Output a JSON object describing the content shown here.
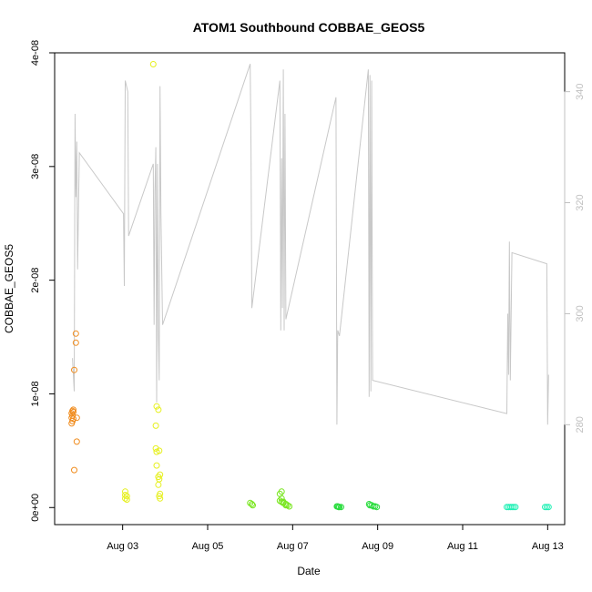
{
  "chart_data": {
    "type": "scatter",
    "title": "ATOM1 Southbound COBBAE_GEOS5",
    "xlabel": "Date",
    "ylabel": "COBBAE_GEOS5",
    "xlim": [
      "2016-08-01T09:36",
      "2016-08-13T09:36"
    ],
    "x_ticks": [
      {
        "date": "2016-08-03",
        "label": "Aug 03"
      },
      {
        "date": "2016-08-05",
        "label": "Aug 05"
      },
      {
        "date": "2016-08-07",
        "label": "Aug 07"
      },
      {
        "date": "2016-08-09",
        "label": "Aug 09"
      },
      {
        "date": "2016-08-11",
        "label": "Aug 11"
      },
      {
        "date": "2016-08-13",
        "label": "Aug 13"
      }
    ],
    "ylim": [
      -1.5e-09,
      4e-08
    ],
    "y_ticks": [
      {
        "value": 0,
        "label": "0e+00"
      },
      {
        "value": 1e-08,
        "label": "1e-08"
      },
      {
        "value": 2e-08,
        "label": "2e-08"
      },
      {
        "value": 3e-08,
        "label": "3e-08"
      },
      {
        "value": 4e-08,
        "label": "4e-08"
      }
    ],
    "y2lim": [
      262,
      347
    ],
    "y2_ticks": [
      {
        "value": 280,
        "label": "280"
      },
      {
        "value": 300,
        "label": "300"
      },
      {
        "value": 320,
        "label": "320"
      },
      {
        "value": 340,
        "label": "340"
      }
    ],
    "grid": false,
    "colors": {
      "secondary_line": "#c8c8c8",
      "right_axis": "#c0c0c0"
    },
    "series": [
      {
        "points": [
          [
            "2016-08-01T19:12",
            7.4e-09
          ],
          [
            "2016-08-01T19:12",
            7.9e-09
          ],
          [
            "2016-08-01T19:12",
            8.3e-09
          ],
          [
            "2016-08-01T19:40",
            7.6e-09
          ],
          [
            "2016-08-01T19:40",
            8.1e-09
          ],
          [
            "2016-08-01T19:40",
            8.5e-09
          ],
          [
            "2016-08-01T20:10",
            7.8e-09
          ],
          [
            "2016-08-01T20:10",
            8.4e-09
          ],
          [
            "2016-08-01T20:10",
            8.6e-09
          ],
          [
            "2016-08-01T20:38",
            1.21e-08
          ],
          [
            "2016-08-01T20:38",
            3.3e-09
          ],
          [
            "2016-08-01T21:36",
            1.45e-08
          ],
          [
            "2016-08-01T21:36",
            1.53e-08
          ],
          [
            "2016-08-01T22:05",
            7.9e-09
          ],
          [
            "2016-08-01T22:05",
            5.8e-09
          ]
        ]
      },
      {
        "points": [
          [
            "2016-08-03T01:26",
            1.1e-09
          ],
          [
            "2016-08-03T01:26",
            1.4e-09
          ],
          [
            "2016-08-03T01:26",
            8e-10
          ],
          [
            "2016-08-03T02:24",
            1e-09
          ],
          [
            "2016-08-03T02:24",
            7e-10
          ],
          [
            "2016-08-03T17:17",
            3.9e-08
          ],
          [
            "2016-08-03T18:43",
            5.2e-09
          ],
          [
            "2016-08-03T18:43",
            7.2e-09
          ],
          [
            "2016-08-03T19:12",
            8.9e-09
          ],
          [
            "2016-08-03T19:12",
            4.9e-09
          ],
          [
            "2016-08-03T19:12",
            3.7e-09
          ],
          [
            "2016-08-03T20:10",
            2e-09
          ],
          [
            "2016-08-03T20:10",
            8.6e-09
          ],
          [
            "2016-08-03T20:10",
            2.7e-09
          ],
          [
            "2016-08-03T20:38",
            5e-09
          ],
          [
            "2016-08-03T20:38",
            1e-09
          ],
          [
            "2016-08-03T20:38",
            2.5e-09
          ],
          [
            "2016-08-03T21:07",
            8e-10
          ],
          [
            "2016-08-03T21:07",
            2.9e-09
          ],
          [
            "2016-08-03T21:07",
            1.2e-09
          ]
        ]
      },
      {
        "points": [
          [
            "2016-08-06T00:00",
            4e-10
          ],
          [
            "2016-08-06T01:26",
            2e-10
          ],
          [
            "2016-08-06T00:58",
            3e-10
          ],
          [
            "2016-08-06T16:48",
            1.2e-09
          ],
          [
            "2016-08-06T16:48",
            6e-10
          ],
          [
            "2016-08-06T17:46",
            1.4e-09
          ],
          [
            "2016-08-06T17:46",
            8e-10
          ],
          [
            "2016-08-06T17:46",
            5e-10
          ],
          [
            "2016-08-06T18:43",
            5e-10
          ],
          [
            "2016-08-06T18:43",
            4e-10
          ],
          [
            "2016-08-06T20:10",
            3e-10
          ],
          [
            "2016-08-06T20:10",
            2e-10
          ],
          [
            "2016-08-06T21:07",
            2e-10
          ],
          [
            "2016-08-06T22:05",
            1e-10
          ]
        ]
      },
      {
        "points": [
          [
            "2016-08-08T00:58",
            1e-10
          ],
          [
            "2016-08-08T01:26",
            1e-10
          ],
          [
            "2016-08-08T01:55",
            5e-11
          ],
          [
            "2016-08-08T02:24",
            5e-11
          ],
          [
            "2016-08-08T03:22",
            5e-11
          ],
          [
            "2016-08-08T19:12",
            3e-10
          ],
          [
            "2016-08-08T19:40",
            2e-10
          ],
          [
            "2016-08-08T20:38",
            2e-10
          ],
          [
            "2016-08-08T21:36",
            1e-10
          ],
          [
            "2016-08-08T22:34",
            1e-10
          ],
          [
            "2016-08-08T23:31",
            5e-11
          ]
        ]
      },
      {
        "points": [
          [
            "2016-08-12T00:58",
            5e-11
          ],
          [
            "2016-08-12T01:55",
            5e-11
          ],
          [
            "2016-08-12T02:53",
            5e-11
          ],
          [
            "2016-08-12T03:50",
            5e-11
          ],
          [
            "2016-08-12T04:48",
            5e-11
          ],
          [
            "2016-08-12T05:46",
            5e-11
          ],
          [
            "2016-08-12T22:34",
            5e-11
          ],
          [
            "2016-08-12T23:31",
            5e-11
          ],
          [
            "2016-08-13T00:29",
            5e-11
          ]
        ]
      },
      {
        "axis": "right",
        "points": [
          [
            "2016-08-01T19:40",
            292
          ],
          [
            "2016-08-01T20:38",
            286
          ],
          [
            "2016-08-01T21:07",
            336
          ],
          [
            "2016-08-01T21:36",
            321
          ],
          [
            "2016-08-01T22:05",
            331
          ],
          [
            "2016-08-01T22:34",
            308
          ],
          [
            "2016-08-01T23:31",
            329
          ],
          [
            "2016-08-03T00:29",
            318
          ],
          [
            "2016-08-03T00:58",
            305
          ],
          [
            "2016-08-03T01:26",
            342
          ],
          [
            "2016-08-03T02:53",
            340
          ],
          [
            "2016-08-03T03:22",
            314
          ],
          [
            "2016-08-03T17:17",
            327
          ],
          [
            "2016-08-03T17:46",
            298
          ],
          [
            "2016-08-03T18:14",
            322
          ],
          [
            "2016-08-03T18:43",
            330
          ],
          [
            "2016-08-03T19:12",
            284
          ],
          [
            "2016-08-03T19:40",
            327
          ],
          [
            "2016-08-03T20:10",
            296
          ],
          [
            "2016-08-03T20:38",
            288
          ],
          [
            "2016-08-03T21:07",
            341
          ],
          [
            "2016-08-03T21:36",
            318
          ],
          [
            "2016-08-03T22:34",
            298
          ],
          [
            "2016-08-06T00:00",
            345
          ],
          [
            "2016-08-06T00:29",
            330
          ],
          [
            "2016-08-06T00:58",
            301
          ],
          [
            "2016-08-06T16:48",
            342
          ],
          [
            "2016-08-06T17:17",
            297
          ],
          [
            "2016-08-06T17:46",
            328
          ],
          [
            "2016-08-06T18:14",
            301
          ],
          [
            "2016-08-06T18:43",
            344
          ],
          [
            "2016-08-06T19:12",
            297
          ],
          [
            "2016-08-06T19:40",
            336
          ],
          [
            "2016-08-06T20:10",
            299
          ],
          [
            "2016-08-08T00:29",
            339
          ],
          [
            "2016-08-08T00:58",
            280
          ],
          [
            "2016-08-08T01:26",
            297
          ],
          [
            "2016-08-08T02:24",
            296
          ],
          [
            "2016-08-08T18:43",
            344
          ],
          [
            "2016-08-08T19:12",
            285
          ],
          [
            "2016-08-08T19:40",
            343
          ],
          [
            "2016-08-08T20:10",
            286
          ],
          [
            "2016-08-08T20:38",
            342
          ],
          [
            "2016-08-08T21:07",
            288
          ],
          [
            "2016-08-12T00:58",
            282
          ],
          [
            "2016-08-12T01:26",
            300
          ],
          [
            "2016-08-12T01:55",
            289
          ],
          [
            "2016-08-12T02:24",
            313
          ],
          [
            "2016-08-12T02:53",
            288
          ],
          [
            "2016-08-12T03:50",
            311
          ],
          [
            "2016-08-12T23:31",
            309
          ],
          [
            "2016-08-13T00:00",
            280
          ],
          [
            "2016-08-13T00:29",
            289
          ]
        ]
      }
    ]
  }
}
